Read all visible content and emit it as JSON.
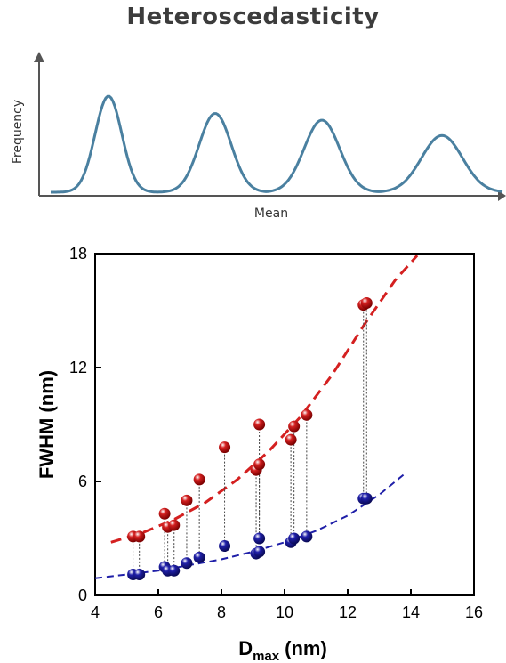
{
  "top": {
    "title": "Heteroscedasticity",
    "xlabel": "Mean",
    "ylabel": "Frequency",
    "colors": {
      "curve": "#4a80a0",
      "axis": "#555555"
    }
  },
  "chart_data": [
    {
      "type": "line",
      "title": "Heteroscedasticity",
      "xlabel": "Mean",
      "ylabel": "Frequency",
      "note": "Schematic of four bell curves with increasing spread and decreasing peak height",
      "series": [
        {
          "values": [
            {
              "mean": 1,
              "peak": 1.0,
              "width": 1.0
            },
            {
              "mean": 2,
              "peak": 0.82,
              "width": 1.2
            },
            {
              "mean": 3,
              "peak": 0.75,
              "width": 1.35
            },
            {
              "mean": 4,
              "peak": 0.59,
              "width": 1.55
            }
          ]
        }
      ]
    },
    {
      "type": "scatter",
      "xlabel": "D",
      "xlabel_sub": "max",
      "xlabel_unit": "(nm)",
      "ylabel": "FWHM (nm)",
      "xlim": [
        4,
        16
      ],
      "ylim": [
        0,
        18
      ],
      "xticks": [
        4,
        6,
        8,
        10,
        12,
        14,
        16
      ],
      "yticks": [
        0,
        6,
        12,
        18
      ],
      "grid": false,
      "x": [
        5.2,
        5.4,
        6.2,
        6.3,
        6.5,
        6.9,
        7.3,
        8.1,
        9.1,
        9.2,
        9.2,
        10.2,
        10.3,
        10.7,
        12.5,
        12.6
      ],
      "series": [
        {
          "color": "#d42020",
          "values": [
            3.1,
            3.1,
            4.3,
            3.6,
            3.7,
            5.0,
            6.1,
            7.8,
            6.6,
            6.9,
            9.0,
            8.2,
            8.9,
            9.5,
            15.3,
            15.4
          ]
        },
        {
          "color": "#1f1fa8",
          "values": [
            1.1,
            1.1,
            1.5,
            1.3,
            1.3,
            1.7,
            2.0,
            2.6,
            2.2,
            3.0,
            2.3,
            2.8,
            3.0,
            3.1,
            5.1,
            5.1
          ]
        }
      ],
      "fits": [
        {
          "color": "#d42020",
          "style": "dashed",
          "x": [
            4.5,
            5.5,
            6.5,
            7.5,
            8.5,
            9.5,
            10.5,
            11.5,
            12.5,
            13.5,
            14.2
          ],
          "y": [
            2.8,
            3.3,
            4.0,
            4.9,
            6.1,
            7.6,
            9.4,
            11.6,
            14.2,
            16.6,
            17.9
          ]
        },
        {
          "color": "#1f1fa8",
          "style": "dashed",
          "x": [
            4.0,
            5.0,
            6.0,
            7.0,
            8.0,
            9.0,
            10.0,
            11.0,
            12.0,
            13.0,
            13.8
          ],
          "y": [
            0.9,
            1.1,
            1.3,
            1.6,
            1.9,
            2.3,
            2.8,
            3.4,
            4.2,
            5.3,
            6.4
          ]
        }
      ]
    }
  ]
}
